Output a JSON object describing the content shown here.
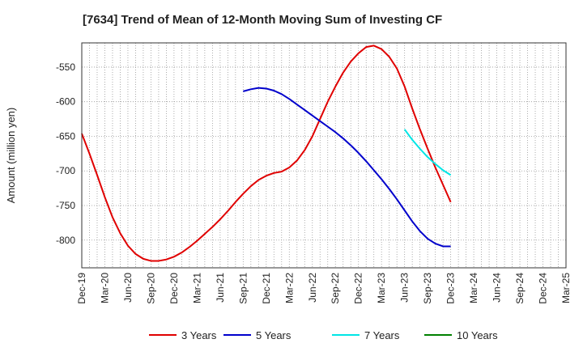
{
  "chart_data": {
    "type": "line",
    "title": "[7634]  Trend of Mean of 12-Month Moving Sum of Investing CF",
    "xlabel": "",
    "ylabel": "Amount (million yen)",
    "ylim": [
      -840,
      -515
    ],
    "yticks": [
      -550,
      -600,
      -650,
      -700,
      -750,
      -800
    ],
    "ytick_labels": [
      "-550",
      "-600",
      "-650",
      "-700",
      "-750",
      "-800"
    ],
    "x_categories": [
      "Dec-19",
      "Mar-20",
      "Jun-20",
      "Sep-20",
      "Dec-20",
      "Mar-21",
      "Jun-21",
      "Sep-21",
      "Dec-21",
      "Mar-22",
      "Jun-22",
      "Sep-22",
      "Dec-22",
      "Mar-23",
      "Jun-23",
      "Sep-23",
      "Dec-23",
      "Mar-24",
      "Jun-24",
      "Sep-24",
      "Dec-24",
      "Mar-25"
    ],
    "grid": true,
    "legend_position": "bottom",
    "series": [
      {
        "name": "3 Years",
        "color": "#e00000",
        "points": [
          [
            0,
            -646
          ],
          [
            1,
            -675
          ],
          [
            2,
            -706
          ],
          [
            3,
            -738
          ],
          [
            4,
            -767
          ],
          [
            5,
            -790
          ],
          [
            6,
            -808
          ],
          [
            7,
            -820
          ],
          [
            8,
            -827
          ],
          [
            9,
            -830
          ],
          [
            10,
            -830
          ],
          [
            11,
            -828
          ],
          [
            12,
            -824
          ],
          [
            13,
            -818
          ],
          [
            14,
            -810
          ],
          [
            15,
            -801
          ],
          [
            16,
            -791
          ],
          [
            17,
            -781
          ],
          [
            18,
            -770
          ],
          [
            19,
            -758
          ],
          [
            20,
            -745
          ],
          [
            21,
            -733
          ],
          [
            22,
            -722
          ],
          [
            23,
            -713
          ],
          [
            24,
            -707
          ],
          [
            25,
            -703
          ],
          [
            26,
            -701
          ],
          [
            27,
            -695
          ],
          [
            28,
            -685
          ],
          [
            29,
            -670
          ],
          [
            30,
            -650
          ],
          [
            31,
            -625
          ],
          [
            32,
            -600
          ],
          [
            33,
            -578
          ],
          [
            34,
            -558
          ],
          [
            35,
            -542
          ],
          [
            36,
            -530
          ],
          [
            37,
            -521
          ],
          [
            38,
            -519
          ],
          [
            39,
            -524
          ],
          [
            40,
            -535
          ],
          [
            41,
            -552
          ],
          [
            42,
            -578
          ],
          [
            43,
            -610
          ],
          [
            44,
            -640
          ],
          [
            45,
            -668
          ],
          [
            46,
            -695
          ],
          [
            47,
            -720
          ],
          [
            48,
            -745
          ]
        ]
      },
      {
        "name": "5 Years",
        "color": "#0000cc",
        "points": [
          [
            21,
            -585
          ],
          [
            22,
            -582
          ],
          [
            23,
            -580
          ],
          [
            24,
            -581
          ],
          [
            25,
            -584
          ],
          [
            26,
            -589
          ],
          [
            27,
            -596
          ],
          [
            28,
            -604
          ],
          [
            29,
            -612
          ],
          [
            30,
            -620
          ],
          [
            31,
            -628
          ],
          [
            32,
            -636
          ],
          [
            33,
            -644
          ],
          [
            34,
            -653
          ],
          [
            35,
            -663
          ],
          [
            36,
            -674
          ],
          [
            37,
            -686
          ],
          [
            38,
            -699
          ],
          [
            39,
            -712
          ],
          [
            40,
            -726
          ],
          [
            41,
            -741
          ],
          [
            42,
            -757
          ],
          [
            43,
            -773
          ],
          [
            44,
            -787
          ],
          [
            45,
            -798
          ],
          [
            46,
            -805
          ],
          [
            47,
            -809
          ],
          [
            48,
            -809
          ]
        ]
      },
      {
        "name": "7 Years",
        "color": "#00e5e5",
        "points": [
          [
            42,
            -640
          ],
          [
            43,
            -655
          ],
          [
            44,
            -668
          ],
          [
            45,
            -680
          ],
          [
            46,
            -690
          ],
          [
            47,
            -699
          ],
          [
            48,
            -706
          ]
        ]
      },
      {
        "name": "10 Years",
        "color": "#008000",
        "points": []
      }
    ]
  }
}
